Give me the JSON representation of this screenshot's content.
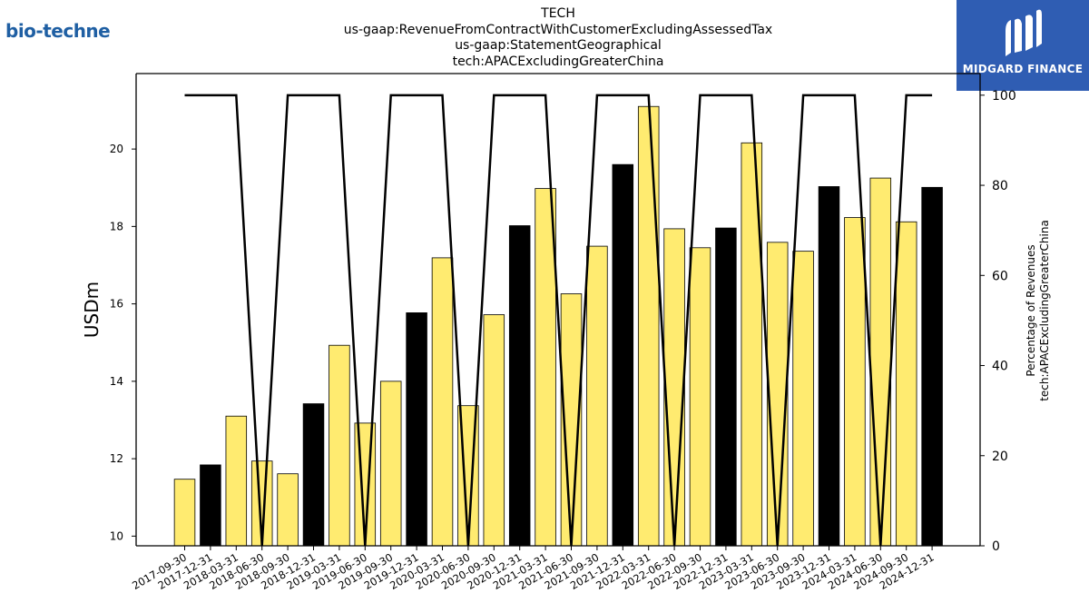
{
  "header": {
    "company_logo_text": "bio-techne",
    "title_lines": [
      "TECH",
      "us-gaap:RevenueFromContractWithCustomerExcludingAssessedTax",
      "us-gaap:StatementGeographical",
      "tech:APACExcludingGreaterChina"
    ],
    "brand_name": "MIDGARD FINANCE"
  },
  "colors": {
    "bar_yellow": "#ffeb70",
    "bar_black": "#000000",
    "line": "#000000",
    "brand_bg": "#2f5db3"
  },
  "chart_data": {
    "type": "bar",
    "categories": [
      "2017-09-30",
      "2017-12-31",
      "2018-03-31",
      "2018-06-30",
      "2018-09-30",
      "2018-12-31",
      "2019-03-31",
      "2019-06-30",
      "2019-09-30",
      "2019-12-31",
      "2020-03-31",
      "2020-06-30",
      "2020-09-30",
      "2020-12-31",
      "2021-03-31",
      "2021-06-30",
      "2021-09-30",
      "2021-12-31",
      "2022-03-31",
      "2022-06-30",
      "2022-09-30",
      "2022-12-31",
      "2023-03-31",
      "2023-06-30",
      "2023-09-30",
      "2023-12-31",
      "2024-03-31",
      "2024-06-30",
      "2024-09-30",
      "2024-12-31"
    ],
    "values": [
      11.47,
      11.84,
      13.1,
      11.94,
      11.61,
      13.42,
      14.93,
      12.92,
      14.0,
      15.77,
      17.19,
      13.37,
      15.72,
      18.02,
      18.98,
      16.26,
      17.49,
      19.6,
      21.1,
      17.94,
      17.45,
      17.96,
      20.16,
      17.59,
      17.36,
      19.03,
      18.23,
      19.25,
      18.12,
      19.01
    ],
    "bar_colors": [
      "yellow",
      "black",
      "yellow",
      "yellow",
      "yellow",
      "black",
      "yellow",
      "yellow",
      "yellow",
      "black",
      "yellow",
      "yellow",
      "yellow",
      "black",
      "yellow",
      "yellow",
      "yellow",
      "black",
      "yellow",
      "yellow",
      "yellow",
      "black",
      "yellow",
      "yellow",
      "yellow",
      "black",
      "yellow",
      "yellow",
      "yellow",
      "black"
    ],
    "line_series": {
      "values": [
        100,
        100,
        100,
        0,
        100,
        100,
        100,
        0,
        100,
        100,
        100,
        0,
        100,
        100,
        100,
        0,
        100,
        100,
        100,
        0,
        100,
        100,
        100,
        0,
        100,
        100,
        100,
        0,
        100,
        100
      ]
    },
    "ylabel": "USDm",
    "ylim": [
      9.75,
      21.95
    ],
    "yticks": [
      10,
      12,
      14,
      16,
      18,
      20
    ],
    "y2label_lines": [
      "Percentage of Revenues",
      "tech:APACExcludingGreaterChina"
    ],
    "y2lim": [
      0,
      104.8
    ],
    "y2ticks": [
      0,
      20,
      40,
      60,
      80,
      100
    ],
    "grid": false
  }
}
